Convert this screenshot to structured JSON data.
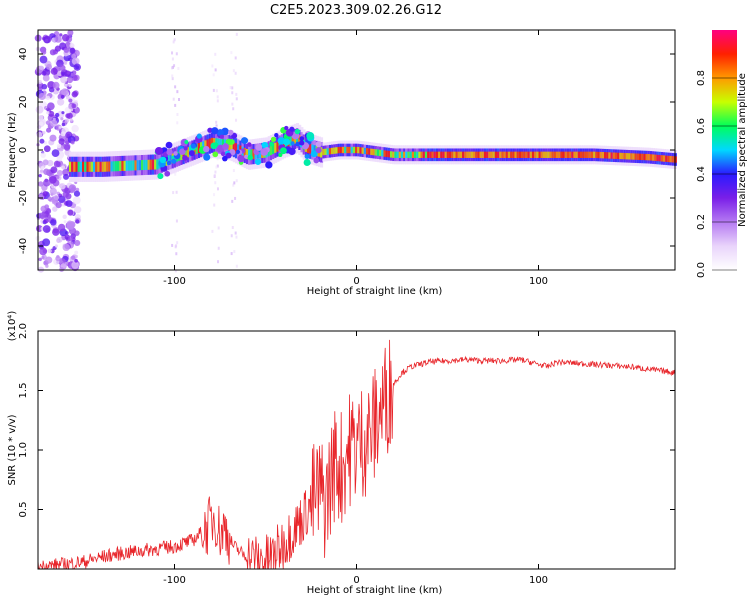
{
  "title": "C2E5.2023.309.02.26.G12",
  "colors": {
    "snr_line": "#e8252a",
    "axis": "#000000",
    "background": "#ffffff",
    "colormap": [
      "#ffffff",
      "#e9d4fb",
      "#b57af2",
      "#7a1fe8",
      "#2a1aff",
      "#00d8ff",
      "#00ff5a",
      "#c8ff00",
      "#ff9a00",
      "#ff2000",
      "#ff0080"
    ]
  },
  "chart_data": [
    {
      "type": "heatmap",
      "title": "C2E5.2023.309.02.26.G12",
      "xlabel": "Height of straight line (km)",
      "ylabel": "Frequency (Hz)",
      "xlim": [
        -175,
        175
      ],
      "ylim": [
        -50,
        50
      ],
      "xticks": [
        -100,
        0,
        100
      ],
      "xtick_labels": [
        "-100",
        "0",
        "100"
      ],
      "yticks": [
        -40,
        -20,
        0,
        20,
        40
      ],
      "ytick_labels": [
        "-40",
        "-20",
        "0",
        "20",
        "40"
      ],
      "colorbar": {
        "label": "Normalized spectral amplitude",
        "range": [
          0,
          1
        ],
        "ticks": [
          0.0,
          0.2,
          0.4,
          0.6,
          0.8
        ],
        "tick_labels": [
          "0.0",
          "0.2",
          "0.4",
          "0.6",
          "0.8"
        ]
      },
      "ridge": {
        "x": [
          -155,
          -140,
          -125,
          -110,
          -100,
          -90,
          -80,
          -70,
          -60,
          -50,
          -40,
          -33,
          -28,
          -20,
          -10,
          0,
          20,
          50,
          80,
          100,
          130,
          160,
          175
        ],
        "frequency": [
          -7,
          -7,
          -6.5,
          -6,
          -3,
          0,
          3,
          2,
          -2,
          -1,
          3,
          5,
          1,
          -1,
          0,
          0,
          -2,
          -2,
          -2,
          -2,
          -2,
          -3,
          -4
        ]
      },
      "grid": false
    },
    {
      "type": "line",
      "xlabel": "Height of straight line (km)",
      "ylabel": "SNR (10 * v/v)",
      "y_multiplier_label": "(x10⁴)",
      "xlim": [
        -175,
        175
      ],
      "ylim": [
        0,
        2.0
      ],
      "xticks": [
        -100,
        0,
        100
      ],
      "xtick_labels": [
        "-100",
        "0",
        "100"
      ],
      "yticks": [
        0.5,
        1.0,
        1.5,
        2.0
      ],
      "ytick_labels": [
        "0.5",
        "1.0",
        "1.5",
        "2.0"
      ],
      "series": [
        {
          "x": [
            -175,
            -160,
            -150,
            -140,
            -130,
            -120,
            -110,
            -100,
            -90,
            -82,
            -78,
            -75,
            -72,
            -68,
            -62,
            -56,
            -50,
            -45,
            -40,
            -35,
            -30,
            -25,
            -20,
            -17,
            -15,
            -12,
            -8,
            -5,
            0,
            5,
            10,
            15,
            20,
            25,
            30,
            40,
            50,
            60,
            70,
            80,
            90,
            100,
            105,
            110,
            120,
            130,
            140,
            150,
            160,
            175
          ],
          "values": [
            0.02,
            0.04,
            0.06,
            0.1,
            0.13,
            0.15,
            0.17,
            0.19,
            0.24,
            0.35,
            0.45,
            0.3,
            0.35,
            0.2,
            0.12,
            0.08,
            0.07,
            0.12,
            0.22,
            0.32,
            0.42,
            0.55,
            0.65,
            0.55,
            0.7,
            0.9,
            0.85,
            1.0,
            1.05,
            1.1,
            1.2,
            1.4,
            1.55,
            1.65,
            1.7,
            1.74,
            1.75,
            1.76,
            1.75,
            1.75,
            1.76,
            1.72,
            1.7,
            1.74,
            1.73,
            1.72,
            1.71,
            1.7,
            1.68,
            1.65
          ]
        }
      ],
      "grid": false
    }
  ]
}
